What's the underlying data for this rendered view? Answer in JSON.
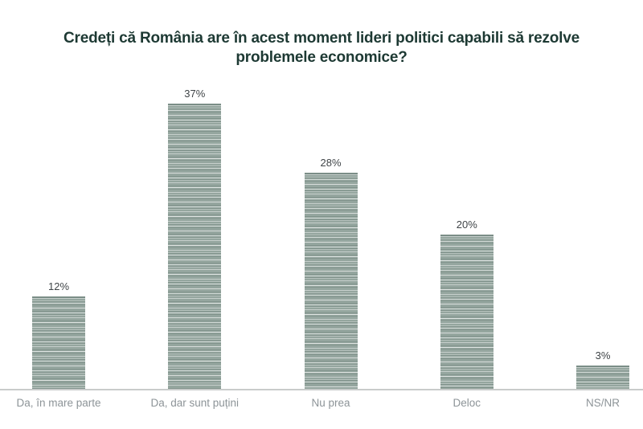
{
  "title": "Credeți că România are în acest moment lideri politici capabili să rezolve problemele economice?",
  "chart_data": {
    "type": "bar",
    "title": "Credeți că România are în acest moment lideri politici capabili să rezolve problemele economice?",
    "categories": [
      "Da, în mare parte",
      "Da, dar sunt puțini",
      "Nu prea",
      "Deloc",
      "NS/NR"
    ],
    "values": [
      12,
      37,
      28,
      20,
      3
    ],
    "value_labels": [
      "12%",
      "37%",
      "28%",
      "20%",
      "3%"
    ],
    "xlabel": "",
    "ylabel": "",
    "ylim": [
      0,
      40
    ],
    "grid": false,
    "legend": "none",
    "colors": {
      "bar_fill": "#95a69f",
      "bar_stripe_light": "#d8dedb",
      "bar_top_edge": "#7b8e87",
      "axis_line": "#c9cccb",
      "title_text": "#1d3933",
      "value_label_text": "#3f4447",
      "category_label_text": "#8d9498",
      "background": "#ffffff"
    }
  }
}
